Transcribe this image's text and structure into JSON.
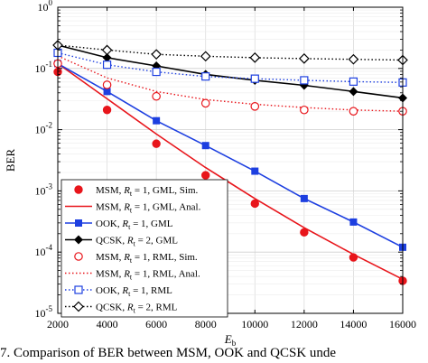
{
  "chart_data": {
    "type": "line",
    "xlabel": "E",
    "xlabel_sub": "b",
    "ylabel": "BER",
    "xlim": [
      2000,
      16000
    ],
    "ylim": [
      1e-05,
      1
    ],
    "yscale": "log",
    "grid": true,
    "legend_position": "bottom-left",
    "x_ticks": [
      "2000",
      "4000",
      "6000",
      "8000",
      "10000",
      "12000",
      "14000",
      "16000"
    ],
    "y_ticks": [
      {
        "base": "10",
        "exp": "-5",
        "value": 1e-05
      },
      {
        "base": "10",
        "exp": "-4",
        "value": 0.0001
      },
      {
        "base": "10",
        "exp": "-3",
        "value": 0.001
      },
      {
        "base": "10",
        "exp": "-2",
        "value": 0.01
      },
      {
        "base": "10",
        "exp": "-1",
        "value": 0.1
      },
      {
        "base": "10",
        "exp": "0",
        "value": 1
      }
    ],
    "series": [
      {
        "name": "MSM, R_t = 1, GML, Sim.",
        "label_parts": [
          "MSM, ",
          "R",
          "t",
          " = 1, GML, Sim."
        ],
        "color": "#e8151b",
        "marker": "filled-circle",
        "line": "none",
        "x": [
          2000,
          4000,
          6000,
          8000,
          10000,
          12000,
          14000,
          16000
        ],
        "y": [
          0.088,
          0.021,
          0.0059,
          0.0018,
          0.00062,
          0.00021,
          8.2e-05,
          3.4e-05
        ]
      },
      {
        "name": "MSM, R_t = 1, GML, Anal.",
        "label_parts": [
          "MSM, ",
          "R",
          "t",
          " = 1, GML, Anal."
        ],
        "color": "#e8151b",
        "marker": "none",
        "line": "solid",
        "x": [
          2000,
          4000,
          6000,
          8000,
          10000,
          12000,
          14000,
          16000
        ],
        "y": [
          0.12,
          0.032,
          0.0085,
          0.0024,
          0.00075,
          0.00025,
          9.2e-05,
          3.6e-05
        ]
      },
      {
        "name": "OOK, R_t = 1, GML",
        "label_parts": [
          "OOK, ",
          "R",
          "t",
          " = 1, GML"
        ],
        "color": "#1d3fe0",
        "marker": "filled-square",
        "line": "solid",
        "x": [
          2000,
          4000,
          6000,
          8000,
          10000,
          12000,
          14000,
          16000
        ],
        "y": [
          0.12,
          0.042,
          0.014,
          0.0055,
          0.0021,
          0.00075,
          0.00031,
          0.00012
        ]
      },
      {
        "name": "QCSK, R_t = 2, GML",
        "label_parts": [
          "QCSK, ",
          "R",
          "t",
          " = 2, GML"
        ],
        "color": "#000000",
        "marker": "filled-diamond",
        "line": "solid",
        "x": [
          2000,
          4000,
          6000,
          8000,
          10000,
          12000,
          14000,
          16000
        ],
        "y": [
          0.24,
          0.15,
          0.11,
          0.08,
          0.064,
          0.053,
          0.042,
          0.033
        ]
      },
      {
        "name": "MSM, R_t = 1, RML, Sim.",
        "label_parts": [
          "MSM, ",
          "R",
          "t",
          " = 1, RML, Sim."
        ],
        "color": "#e8151b",
        "marker": "open-circle",
        "line": "none",
        "x": [
          2000,
          4000,
          6000,
          8000,
          10000,
          12000,
          14000,
          16000
        ],
        "y": [
          0.12,
          0.054,
          0.035,
          0.027,
          0.024,
          0.021,
          0.02,
          0.02
        ]
      },
      {
        "name": "MSM, R_t = 1, RML, Anal.",
        "label_parts": [
          "MSM, ",
          "R",
          "t",
          " = 1, RML, Anal."
        ],
        "color": "#e8151b",
        "marker": "none",
        "line": "dotted",
        "x": [
          2000,
          4000,
          6000,
          8000,
          10000,
          12000,
          14000,
          16000
        ],
        "y": [
          0.16,
          0.07,
          0.042,
          0.031,
          0.026,
          0.023,
          0.021,
          0.02
        ]
      },
      {
        "name": "OOK, R_t = 1, RML",
        "label_parts": [
          "OOK, ",
          "R",
          "t",
          " = 1, RML"
        ],
        "color": "#1d3fe0",
        "marker": "open-square",
        "line": "dotted",
        "x": [
          2000,
          4000,
          6000,
          8000,
          10000,
          12000,
          14000,
          16000
        ],
        "y": [
          0.18,
          0.115,
          0.088,
          0.074,
          0.068,
          0.064,
          0.061,
          0.059
        ]
      },
      {
        "name": "QCSK, R_t = 2, RML",
        "label_parts": [
          "QCSK, ",
          "R",
          "t",
          " = 2, RML"
        ],
        "color": "#000000",
        "marker": "open-diamond",
        "line": "dotted",
        "x": [
          2000,
          4000,
          6000,
          8000,
          10000,
          12000,
          14000,
          16000
        ],
        "y": [
          0.24,
          0.2,
          0.17,
          0.158,
          0.15,
          0.145,
          0.141,
          0.137
        ]
      }
    ]
  },
  "caption": "7.  Comparison of BER between MSM, OOK and QCSK unde"
}
